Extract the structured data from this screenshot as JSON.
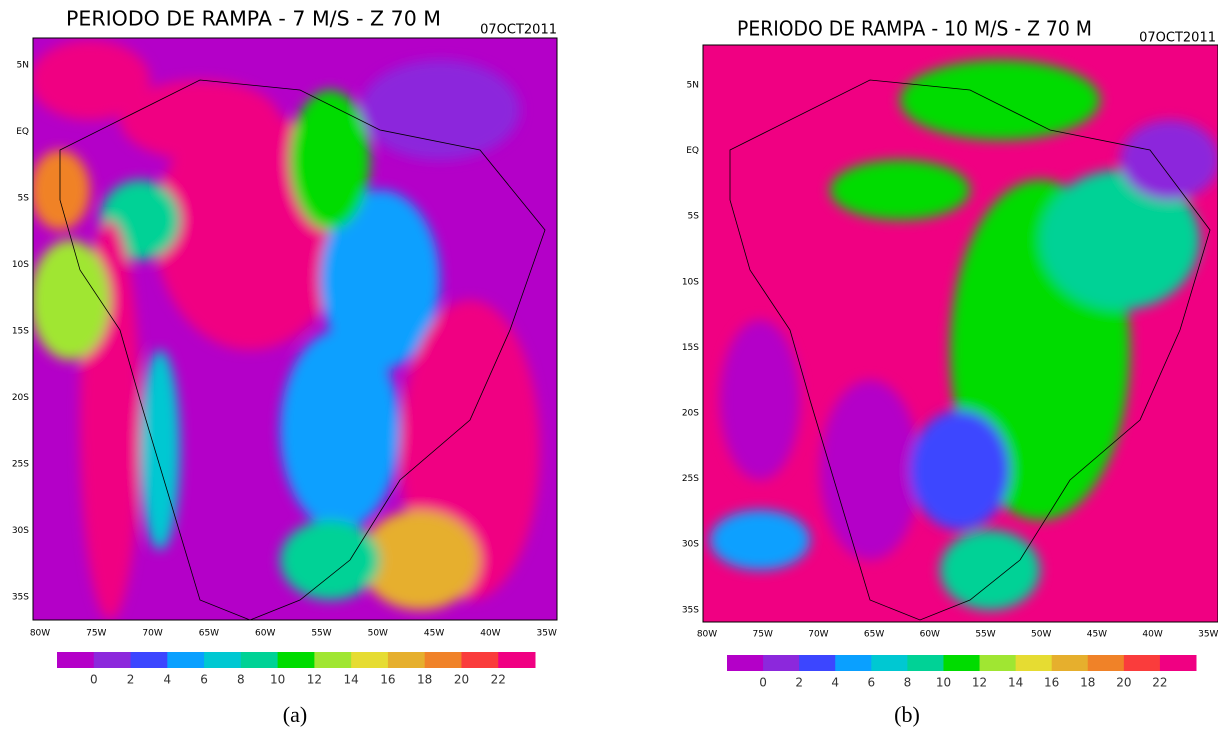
{
  "panels": [
    {
      "title": "PERIODO DE RAMPA - 7 M/S - Z 70 M",
      "date": "07OCT2011",
      "lat_labels": [
        "5N",
        "EQ",
        "5S",
        "10S",
        "15S",
        "20S",
        "25S",
        "30S",
        "35S"
      ],
      "lon_labels": [
        "80W",
        "75W",
        "70W",
        "65W",
        "60W",
        "55W",
        "50W",
        "45W",
        "40W",
        "35W"
      ],
      "colorbar": {
        "labels": [
          0,
          2,
          4,
          6,
          8,
          10,
          12,
          14,
          16,
          18,
          20,
          22
        ],
        "colors": [
          "#b400c8",
          "#8c28dc",
          "#3c46ff",
          "#0aa0ff",
          "#00c8d2",
          "#00d296",
          "#00dc00",
          "#a0e632",
          "#e6dc32",
          "#e6af2d",
          "#f08228",
          "#fa3c3c",
          "#f00082"
        ]
      },
      "caption": "(a)"
    },
    {
      "title": "PERIODO DE RAMPA - 10 M/S - Z 70 M",
      "date": "07OCT2011",
      "lat_labels": [
        "5N",
        "EQ",
        "5S",
        "10S",
        "15S",
        "20S",
        "25S",
        "30S",
        "35S"
      ],
      "lon_labels": [
        "80W",
        "75W",
        "70W",
        "65W",
        "60W",
        "55W",
        "50W",
        "45W",
        "40W",
        "35W"
      ],
      "colorbar": {
        "labels": [
          0,
          2,
          4,
          6,
          8,
          10,
          12,
          14,
          16,
          18,
          20,
          22
        ],
        "colors": [
          "#b400c8",
          "#8c28dc",
          "#3c46ff",
          "#0aa0ff",
          "#00c8d2",
          "#00d296",
          "#00dc00",
          "#a0e632",
          "#e6dc32",
          "#e6af2d",
          "#f08228",
          "#fa3c3c",
          "#f00082"
        ]
      },
      "caption": "(b)"
    }
  ]
}
